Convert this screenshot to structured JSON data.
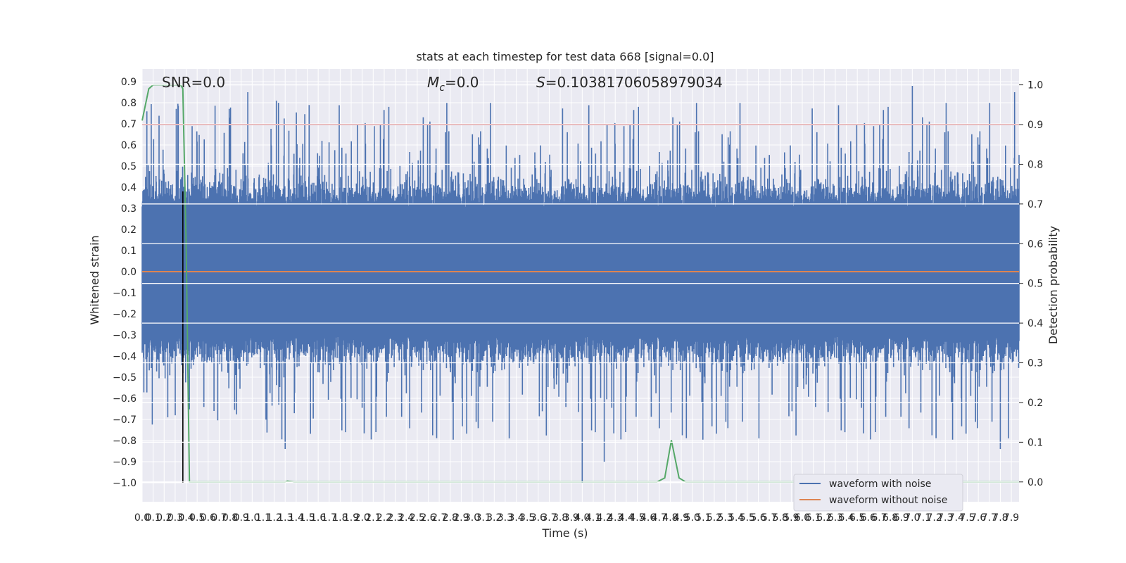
{
  "chart_data": {
    "type": "line",
    "title": "stats at each timestep for test data 668 [signal=0.0]",
    "xlabel": "Time (s)",
    "ylabel_left": "Whitened strain",
    "ylabel_right": "Detection probability",
    "xlim": [
      0.0,
      7.97
    ],
    "ylim_left": [
      -1.09,
      0.96
    ],
    "ylim_right": [
      -0.05,
      1.04
    ],
    "x_ticks": [
      "0.0",
      "0.1",
      "0.2",
      "0.3",
      "0.4",
      "0.5",
      "0.6",
      "0.7",
      "0.8",
      "0.9",
      "1.0",
      "1.1",
      "1.2",
      "1.3",
      "1.4",
      "1.5",
      "1.6",
      "1.7",
      "1.8",
      "1.9",
      "2.0",
      "2.1",
      "2.2",
      "2.3",
      "2.4",
      "2.5",
      "2.6",
      "2.7",
      "2.8",
      "2.9",
      "3.0",
      "3.1",
      "3.2",
      "3.3",
      "3.4",
      "3.5",
      "3.6",
      "3.7",
      "3.8",
      "3.9",
      "4.0",
      "4.1",
      "4.2",
      "4.3",
      "4.4",
      "4.5",
      "4.6",
      "4.7",
      "4.8",
      "4.9",
      "5.0",
      "5.1",
      "5.2",
      "5.3",
      "5.4",
      "5.5",
      "5.6",
      "5.7",
      "5.8",
      "5.9",
      "6.0",
      "6.1",
      "6.2",
      "6.3",
      "6.4",
      "6.5",
      "6.6",
      "6.7",
      "6.8",
      "6.9",
      "7.0",
      "7.1",
      "7.2",
      "7.3",
      "7.4",
      "7.5",
      "7.6",
      "7.7",
      "7.8",
      "7.9"
    ],
    "y_ticks_left": [
      "0.9",
      "0.8",
      "0.7",
      "0.6",
      "0.5",
      "0.4",
      "0.3",
      "0.2",
      "0.1",
      "0.0",
      "−0.1",
      "−0.2",
      "−0.3",
      "−0.4",
      "−0.5",
      "−0.6",
      "−0.7",
      "−0.8",
      "−0.9",
      "−1.0"
    ],
    "y_ticks_right": [
      "1.0",
      "0.9",
      "0.8",
      "0.7",
      "0.6",
      "0.5",
      "0.4",
      "0.3",
      "0.2",
      "0.1",
      "0.0"
    ],
    "annotations": {
      "snr": "SNR=0.0",
      "mc_symbol": "M",
      "mc_sub": "c",
      "mc_value": "=0.0",
      "s_symbol": "S",
      "s_value": "=0.10381706058979034"
    },
    "threshold_right": 0.9,
    "marker_x": 0.37,
    "series": [
      {
        "name": "waveform with noise",
        "color": "#4c72b0",
        "axis": "left",
        "description_values": "noisy whitened strain, roughly within [-0.6, 0.6] with spikes to ~0.88 and -1.0"
      },
      {
        "name": "waveform without noise",
        "color": "#dd8452",
        "axis": "left",
        "values": "constant 0.0"
      },
      {
        "name": "detection probability",
        "color": "#55a868",
        "axis": "right",
        "points": [
          [
            0.0,
            0.91
          ],
          [
            0.06,
            0.99
          ],
          [
            0.1,
            1.0
          ],
          [
            0.15,
            1.0
          ],
          [
            0.2,
            1.0
          ],
          [
            0.3,
            1.0
          ],
          [
            0.35,
            1.0
          ],
          [
            0.37,
            0.99
          ],
          [
            0.4,
            0.6
          ],
          [
            0.43,
            0.0
          ],
          [
            0.6,
            0.0
          ],
          [
            1.0,
            0.0
          ],
          [
            1.3,
            0.0
          ],
          [
            1.32,
            0.002
          ],
          [
            1.38,
            0.0
          ],
          [
            2.0,
            0.0
          ],
          [
            3.0,
            0.0
          ],
          [
            4.0,
            0.0
          ],
          [
            4.5,
            0.0
          ],
          [
            4.68,
            0.0
          ],
          [
            4.75,
            0.01
          ],
          [
            4.81,
            0.105
          ],
          [
            4.88,
            0.01
          ],
          [
            4.94,
            0.0
          ],
          [
            5.5,
            0.0
          ],
          [
            6.5,
            0.0
          ],
          [
            7.5,
            0.0
          ],
          [
            7.97,
            0.0
          ]
        ]
      },
      {
        "name": "threshold",
        "color": "#c44e52",
        "axis": "right",
        "values": "constant 0.9"
      }
    ],
    "legend": {
      "placement": "lower-right",
      "entries": [
        {
          "label": "waveform with noise",
          "color": "#4c72b0"
        },
        {
          "label": "waveform without noise",
          "color": "#dd8452"
        }
      ]
    },
    "grid": true
  }
}
